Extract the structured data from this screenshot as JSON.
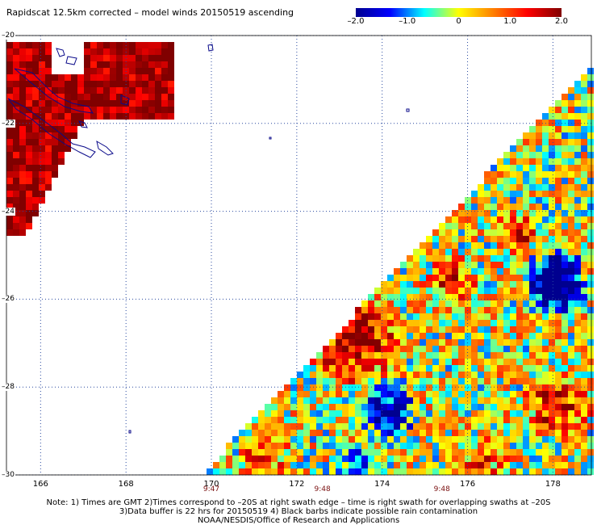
{
  "title": "Rapidscat 12.5km corrected – model winds 20150519 ascending",
  "colorbar": {
    "ticks": [
      "–2.0",
      "–1.0",
      "0",
      "1.0",
      "2.0"
    ],
    "tick_values": [
      -2.0,
      -1.0,
      0,
      1.0,
      2.0
    ],
    "range": [
      -2.0,
      2.0
    ],
    "colors": [
      "#00008f",
      "#0000ff",
      "#00ffff",
      "#ffff00",
      "#ff8000",
      "#ff0000",
      "#800000"
    ]
  },
  "axes": {
    "lat_ticks": [
      "–20",
      "–22",
      "–24",
      "–26",
      "–28",
      "–30"
    ],
    "lat_values": [
      -20,
      -22,
      -24,
      -26,
      -28,
      -30
    ],
    "lon_ticks": [
      "166",
      "168",
      "170",
      "172",
      "174",
      "176",
      "178"
    ],
    "lon_values": [
      166,
      168,
      170,
      172,
      174,
      176,
      178
    ],
    "lon_range": [
      165.2,
      178.9
    ],
    "lat_range": [
      -20,
      -30
    ],
    "grid": "dotted"
  },
  "pass_times": [
    {
      "label": "9:47",
      "lon": 170
    },
    {
      "label": "9:48",
      "lon": 172.6
    },
    {
      "label": "9:48",
      "lon": 175.4
    }
  ],
  "notes": [
    "Note: 1) Times are GMT 2)Times correspond to –20S at right swath edge – time is right swath for overlapping swaths at –20S",
    "3)Data buffer is 22 hrs for 20150519 4) Black barbs indicate possible rain contamination",
    "NOAA/NESDIS/Office of Research and Applications"
  ]
}
